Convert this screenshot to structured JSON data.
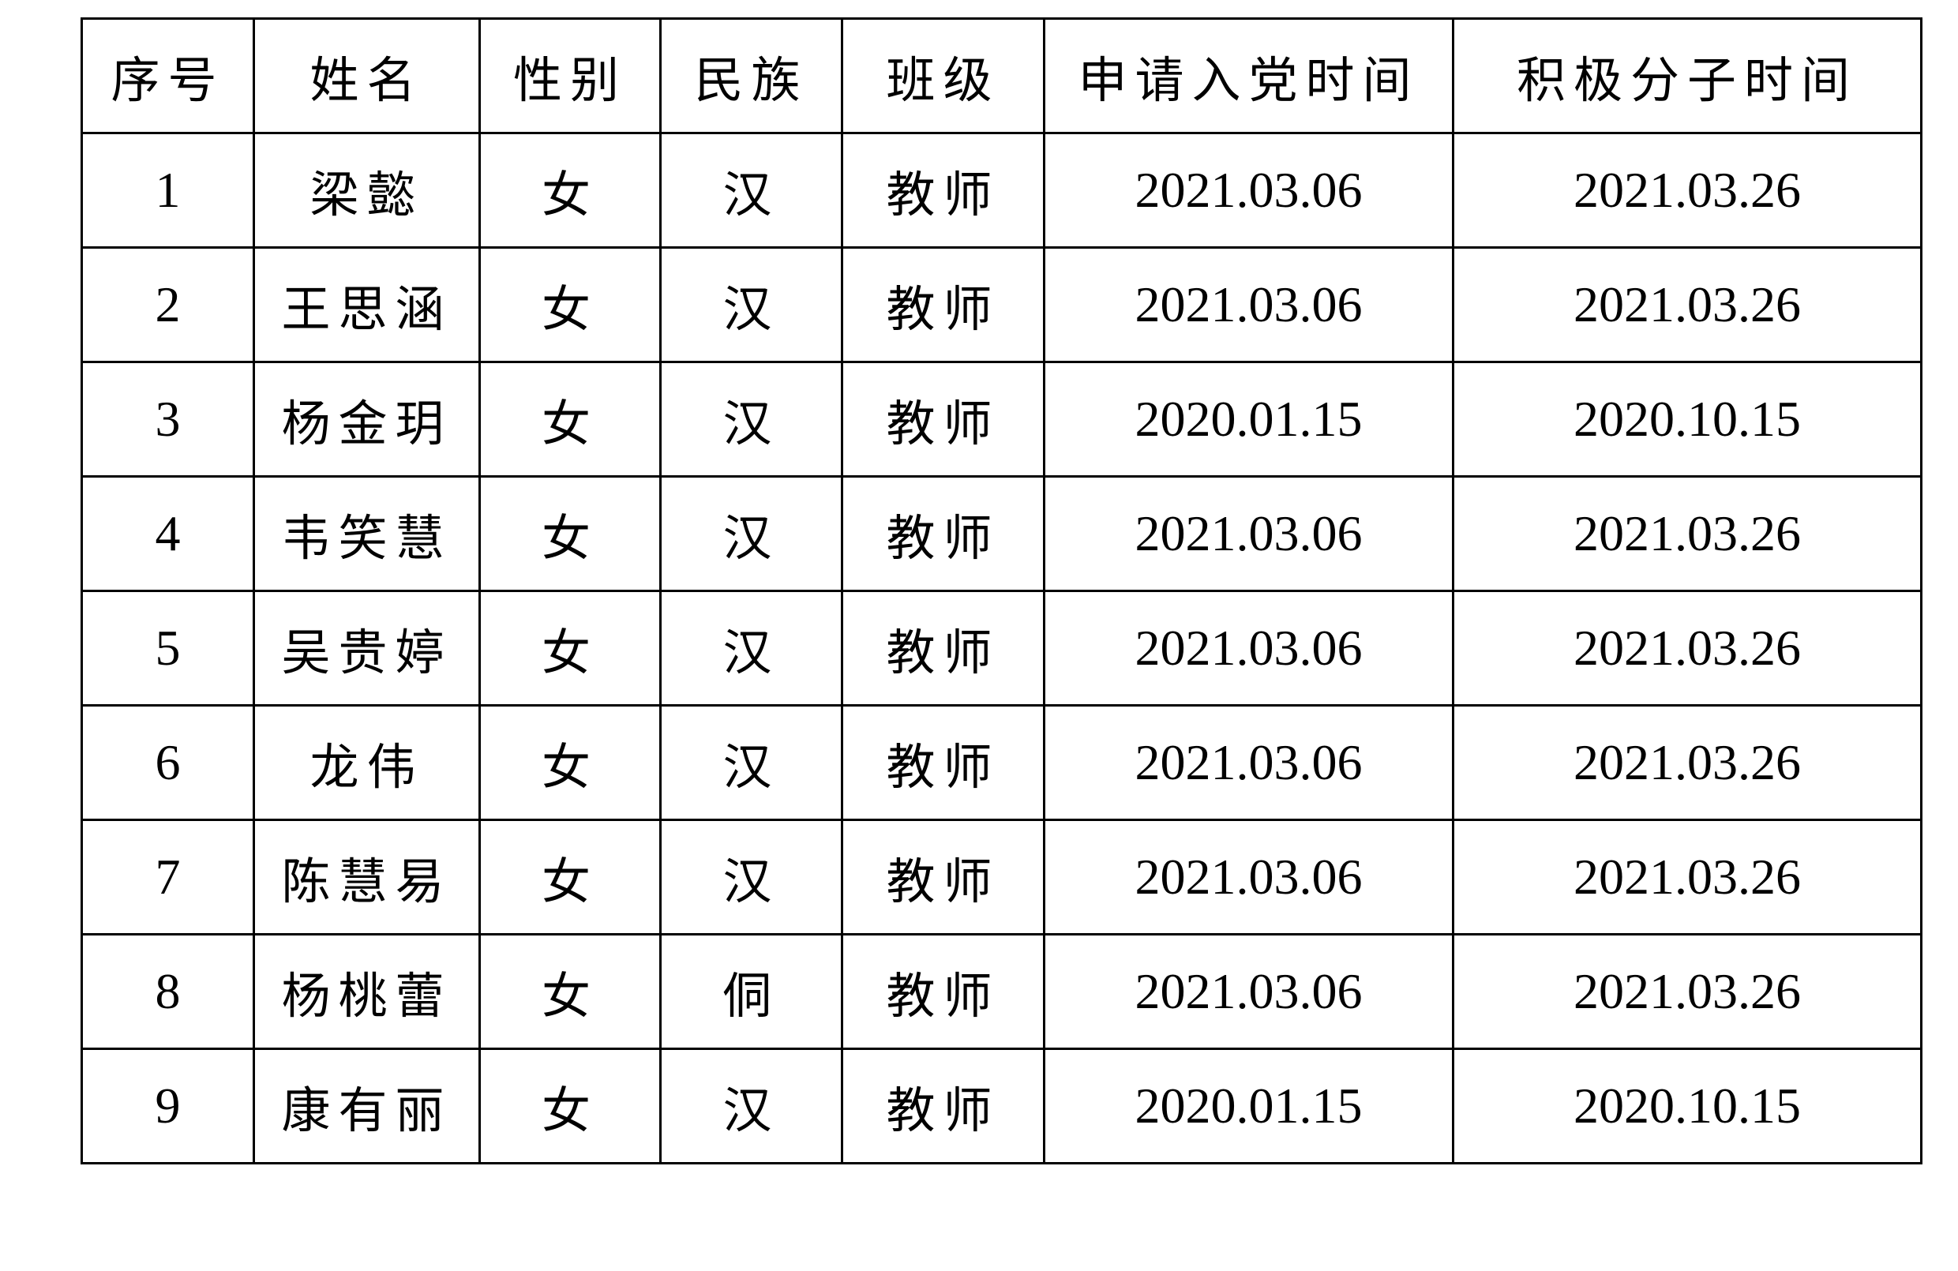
{
  "table": {
    "headers": [
      "序号",
      "姓名",
      "性别",
      "民族",
      "班级",
      "申请入党时间",
      "积极分子时间"
    ],
    "rows": [
      [
        "1",
        "梁懿",
        "女",
        "汉",
        "教师",
        "2021.03.06",
        "2021.03.26"
      ],
      [
        "2",
        "王思涵",
        "女",
        "汉",
        "教师",
        "2021.03.06",
        "2021.03.26"
      ],
      [
        "3",
        "杨金玥",
        "女",
        "汉",
        "教师",
        "2020.01.15",
        "2020.10.15"
      ],
      [
        "4",
        "韦笑慧",
        "女",
        "汉",
        "教师",
        "2021.03.06",
        "2021.03.26"
      ],
      [
        "5",
        "吴贵婷",
        "女",
        "汉",
        "教师",
        "2021.03.06",
        "2021.03.26"
      ],
      [
        "6",
        "龙伟",
        "女",
        "汉",
        "教师",
        "2021.03.06",
        "2021.03.26"
      ],
      [
        "7",
        "陈慧易",
        "女",
        "汉",
        "教师",
        "2021.03.06",
        "2021.03.26"
      ],
      [
        "8",
        "杨桃蕾",
        "女",
        "侗",
        "教师",
        "2021.03.06",
        "2021.03.26"
      ],
      [
        "9",
        "康有丽",
        "女",
        "汉",
        "教师",
        "2020.01.15",
        "2020.10.15"
      ]
    ]
  }
}
